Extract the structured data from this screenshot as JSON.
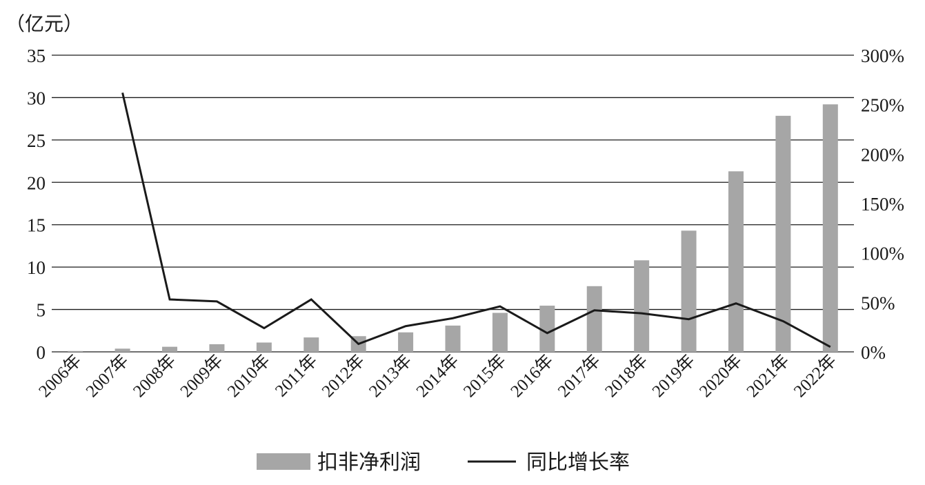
{
  "chart_data": {
    "type": "bar",
    "unit_label": "（亿元）",
    "categories": [
      "2006年",
      "2007年",
      "2008年",
      "2009年",
      "2010年",
      "2011年",
      "2012年",
      "2013年",
      "2014年",
      "2015年",
      "2016年",
      "2017年",
      "2018年",
      "2019年",
      "2020年",
      "2021年",
      "2022年"
    ],
    "series": [
      {
        "name": "扣非净利润",
        "type": "bar",
        "axis": "left",
        "color": "#a6a6a6",
        "values": [
          0.1,
          0.38,
          0.6,
          0.9,
          1.1,
          1.7,
          1.85,
          2.3,
          3.1,
          4.6,
          5.45,
          7.75,
          10.8,
          14.3,
          21.3,
          27.85,
          29.2
        ]
      },
      {
        "name": "同比增长率",
        "type": "line",
        "axis": "right",
        "color": "#1a1a1a",
        "values": [
          null,
          262,
          53,
          51,
          24,
          53,
          8,
          26,
          34,
          46,
          19,
          42,
          39,
          33,
          49,
          31,
          5
        ]
      }
    ],
    "y_left": {
      "min": 0,
      "max": 35,
      "ticks": [
        "0",
        "5",
        "10",
        "15",
        "20",
        "25",
        "30",
        "35"
      ]
    },
    "y_right": {
      "min": 0,
      "max": 300,
      "ticks": [
        "0%",
        "50%",
        "100%",
        "150%",
        "200%",
        "250%",
        "300%"
      ]
    },
    "grid": true,
    "legend": {
      "position": "bottom",
      "items": [
        "扣非净利润",
        "同比增长率"
      ]
    }
  }
}
